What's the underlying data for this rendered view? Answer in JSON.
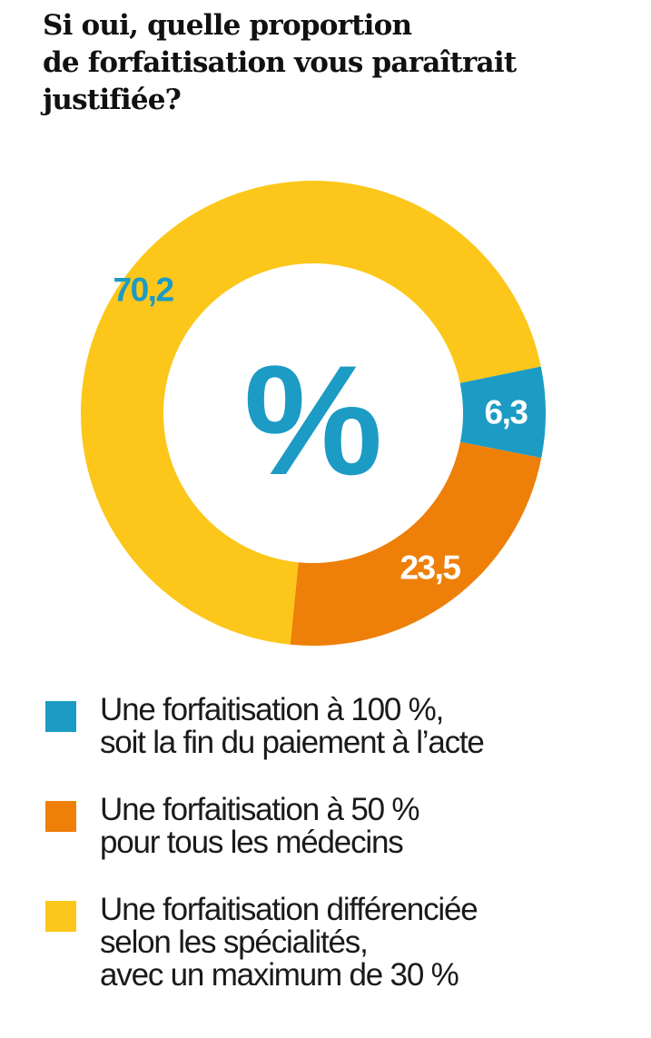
{
  "title_lines": [
    "Si oui, quelle proportion",
    "de forfaitisation vous paraîtrait",
    "justifiée?"
  ],
  "chart_data": {
    "type": "pie",
    "donut": true,
    "center_label": "%",
    "unit": "%",
    "series": [
      {
        "value": 6.3,
        "value_label": "6,3",
        "color": "#1c9bc5",
        "label_color": "#ffffff",
        "legend_lines": [
          "Une forfaitisation à 100 %,",
          "soit la fin du paiement à l’acte"
        ]
      },
      {
        "value": 23.5,
        "value_label": "23,5",
        "color": "#ee7f08",
        "label_color": "#ffffff",
        "legend_lines": [
          "Une forfaitisation à 50 %",
          "pour tous les médecins"
        ]
      },
      {
        "value": 70.2,
        "value_label": "70,2",
        "color": "#fcc71a",
        "label_color": "#1c9bc5",
        "legend_lines": [
          "Une forfaitisation différenciée",
          "selon les spécialités,",
          "avec un maximum de 30 %"
        ]
      }
    ],
    "legend_placement": "bottom"
  },
  "colors": {
    "center_symbol": "#1c9bc5",
    "title": "#111111",
    "legend_text": "#1a1a1a"
  }
}
